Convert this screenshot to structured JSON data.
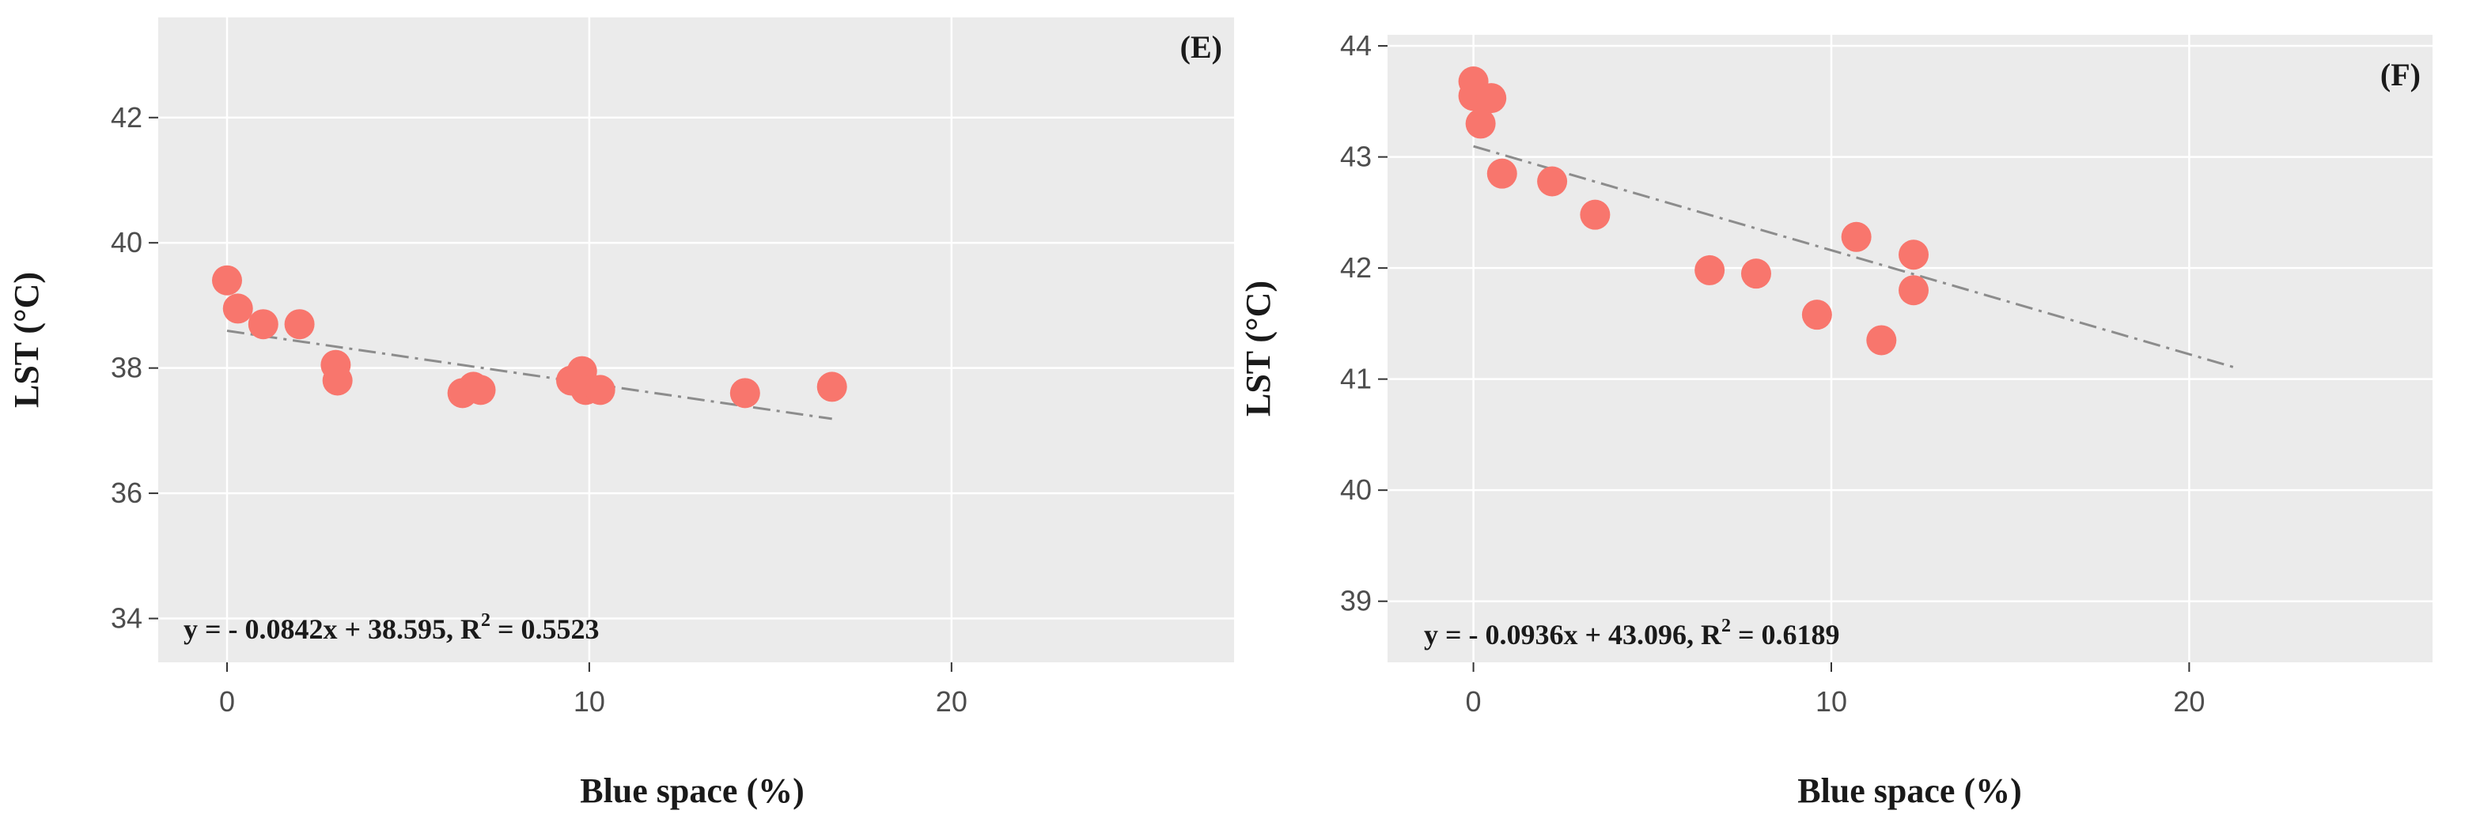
{
  "chart_data": [
    {
      "type": "scatter",
      "panel_label": "(E)",
      "xlabel": "Blue space (%)",
      "ylabel": "LST (°C)",
      "xlim": [
        -1.9,
        27.8
      ],
      "ylim": [
        33.3,
        43.6
      ],
      "x_ticks": [
        0,
        10,
        20
      ],
      "y_ticks": [
        34,
        36,
        38,
        40,
        42
      ],
      "grid": true,
      "point_color": "#f8766d",
      "trend_color": "#8c8c8c",
      "equation_text": "y = - 0.0842x + 38.595, R",
      "equation_sup": "2",
      "equation_tail": " = 0.5523",
      "trendline": {
        "slope": -0.0842,
        "intercept": 38.595,
        "x_range": [
          0,
          16.7
        ]
      },
      "points": [
        {
          "x": 0.0,
          "y": 39.4
        },
        {
          "x": 0.3,
          "y": 38.95
        },
        {
          "x": 1.0,
          "y": 38.7
        },
        {
          "x": 2.0,
          "y": 38.7
        },
        {
          "x": 3.0,
          "y": 38.05
        },
        {
          "x": 3.05,
          "y": 37.8
        },
        {
          "x": 6.5,
          "y": 37.6
        },
        {
          "x": 6.8,
          "y": 37.7
        },
        {
          "x": 7.0,
          "y": 37.65
        },
        {
          "x": 9.5,
          "y": 37.8
        },
        {
          "x": 9.8,
          "y": 37.95
        },
        {
          "x": 9.9,
          "y": 37.65
        },
        {
          "x": 10.3,
          "y": 37.65
        },
        {
          "x": 14.3,
          "y": 37.6
        },
        {
          "x": 16.7,
          "y": 37.7
        }
      ]
    },
    {
      "type": "scatter",
      "panel_label": "(F)",
      "xlabel": "Blue space (%)",
      "ylabel": "LST (°C)",
      "xlim": [
        -2.4,
        26.8
      ],
      "ylim": [
        38.45,
        44.1
      ],
      "x_ticks": [
        0,
        10,
        20
      ],
      "y_ticks": [
        39,
        40,
        41,
        42,
        43,
        44
      ],
      "grid": true,
      "point_color": "#f8766d",
      "trend_color": "#8c8c8c",
      "equation_text": "y = - 0.0936x + 43.096, R",
      "equation_sup": "2",
      "equation_tail": " = 0.6189",
      "trendline": {
        "slope": -0.0936,
        "intercept": 43.096,
        "x_range": [
          0,
          21.3
        ]
      },
      "points": [
        {
          "x": 0.0,
          "y": 43.68
        },
        {
          "x": 0.0,
          "y": 43.55
        },
        {
          "x": 0.5,
          "y": 43.53
        },
        {
          "x": 0.2,
          "y": 43.3
        },
        {
          "x": 0.8,
          "y": 42.85
        },
        {
          "x": 2.2,
          "y": 42.78
        },
        {
          "x": 3.4,
          "y": 42.48
        },
        {
          "x": 6.6,
          "y": 41.98
        },
        {
          "x": 7.9,
          "y": 41.95
        },
        {
          "x": 9.6,
          "y": 41.58
        },
        {
          "x": 10.7,
          "y": 42.28
        },
        {
          "x": 11.4,
          "y": 41.35
        },
        {
          "x": 12.3,
          "y": 42.12
        },
        {
          "x": 12.3,
          "y": 41.8
        }
      ]
    }
  ]
}
